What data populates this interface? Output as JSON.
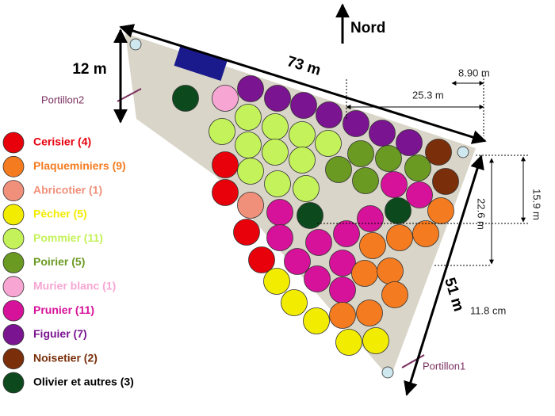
{
  "north": "Nord",
  "dimensions": {
    "top": "73 m",
    "left": "12 m",
    "right": "51 m",
    "top_short": "8.90 m",
    "top_long": "25.3 m",
    "right_short": "15.9 m",
    "right_long": "22.6 m",
    "scale": "11.8 cm"
  },
  "gates": [
    "Portillon2",
    "Portillon1"
  ],
  "legend": [
    {
      "label": "Cerisier (4)",
      "color": "#e8000b"
    },
    {
      "label": "Plaqueminiers (9)",
      "color": "#f47b20"
    },
    {
      "label": "Abricotier (1)",
      "color": "#f0907a"
    },
    {
      "label": "Pècher (5)",
      "color": "#f2ec00"
    },
    {
      "label": "Pommier (11)",
      "color": "#c4f25a"
    },
    {
      "label": "Poirier (5)",
      "color": "#6b9a22"
    },
    {
      "label": "Murier blanc (1)",
      "color": "#f7a6d3"
    },
    {
      "label": "Prunier (11)",
      "color": "#d7129a"
    },
    {
      "label": "Figuier (7)",
      "color": "#7a1490"
    },
    {
      "label": "Noisetier (2)",
      "color": "#7a2e0a"
    },
    {
      "label": "Olivier et autres (3)",
      "color": "#0c4a1e"
    }
  ]
}
